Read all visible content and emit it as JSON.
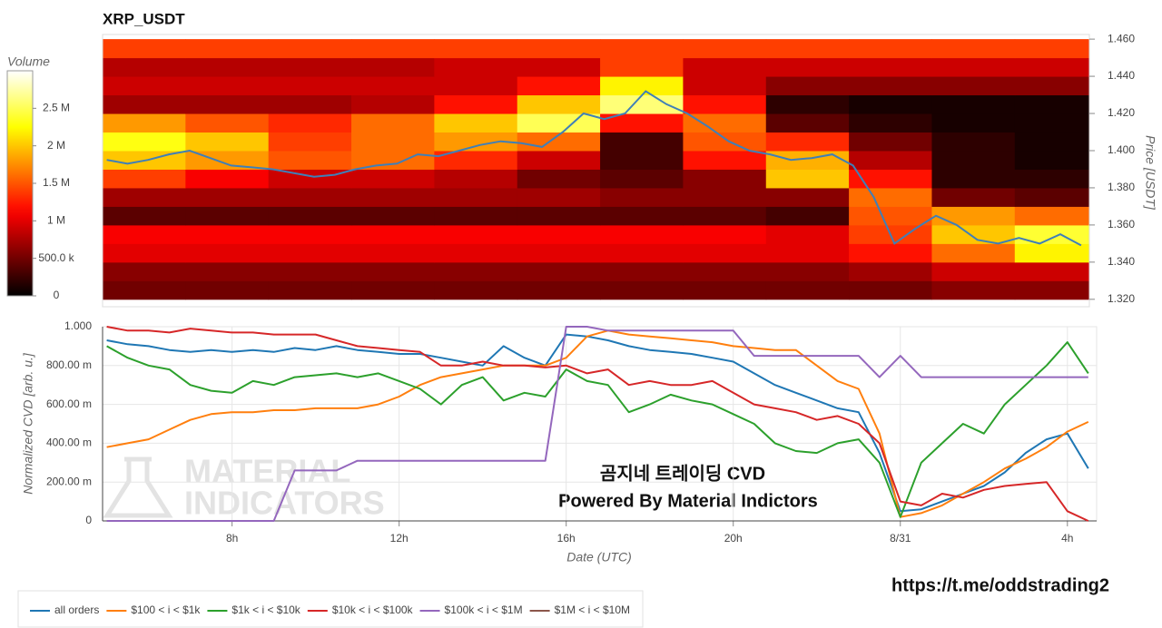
{
  "chart_data": [
    {
      "type": "heatmap",
      "title": "XRP_USDT",
      "ylabel": "Price [USDT]",
      "yaxis_side": "right",
      "xlim": [
        4.9,
        28.7
      ],
      "ylim": [
        1.316,
        1.4625
      ],
      "yticks": [
        {
          "value": 1.32,
          "label": "1.320"
        },
        {
          "value": 1.34,
          "label": "1.340"
        },
        {
          "value": 1.36,
          "label": "1.360"
        },
        {
          "value": 1.38,
          "label": "1.380"
        },
        {
          "value": 1.4,
          "label": "1.400"
        },
        {
          "value": 1.42,
          "label": "1.420"
        },
        {
          "value": 1.44,
          "label": "1.440"
        },
        {
          "value": 1.46,
          "label": "1.460"
        }
      ],
      "colorscale": "hot",
      "colorbar_title": "Volume",
      "zlim": [
        0,
        3000000
      ],
      "zticks": [
        0,
        {
          "value": 500000,
          "label": "500.0 k"
        },
        {
          "value": 1000000,
          "label": "1 M"
        },
        {
          "value": 1500000,
          "label": "1.5 M"
        },
        {
          "value": 2000000,
          "label": "2 M"
        },
        {
          "value": 2500000,
          "label": "2.5 M"
        }
      ],
      "xbins": [
        4.9,
        6.9,
        8.9,
        10.9,
        12.9,
        14.9,
        16.9,
        18.9,
        20.9,
        22.9,
        24.9,
        26.9,
        28.9
      ],
      "ybins": [
        1.32,
        1.33,
        1.34,
        1.35,
        1.36,
        1.37,
        1.38,
        1.39,
        1.4,
        1.41,
        1.42,
        1.43,
        1.44,
        1.45,
        1.46
      ],
      "z": [
        [
          500000,
          500000,
          500000,
          500000,
          500000,
          500000,
          500000,
          500000,
          500000,
          500000,
          600000,
          600000
        ],
        [
          600000,
          600000,
          600000,
          600000,
          600000,
          600000,
          600000,
          600000,
          600000,
          700000,
          900000,
          900000
        ],
        [
          1000000,
          1000000,
          1000000,
          1000000,
          1000000,
          1000000,
          1000000,
          1000000,
          1000000,
          1200000,
          1600000,
          2200000
        ],
        [
          1100000,
          1100000,
          1100000,
          1100000,
          1100000,
          1100000,
          1100000,
          1100000,
          1000000,
          1400000,
          2000000,
          2400000
        ],
        [
          400000,
          400000,
          400000,
          400000,
          400000,
          400000,
          400000,
          400000,
          300000,
          1500000,
          1800000,
          1600000
        ],
        [
          700000,
          700000,
          700000,
          700000,
          700000,
          700000,
          600000,
          600000,
          600000,
          1600000,
          500000,
          400000
        ],
        [
          1400000,
          1100000,
          900000,
          900000,
          800000,
          500000,
          400000,
          600000,
          2000000,
          1200000,
          200000,
          200000
        ],
        [
          2000000,
          1800000,
          1500000,
          1600000,
          1300000,
          900000,
          300000,
          1200000,
          1900000,
          800000,
          200000,
          100000
        ],
        [
          2300000,
          2000000,
          1400000,
          1600000,
          1800000,
          1600000,
          300000,
          1500000,
          1300000,
          500000,
          200000,
          100000
        ],
        [
          1800000,
          1500000,
          1300000,
          1600000,
          2000000,
          2500000,
          1200000,
          1600000,
          400000,
          200000,
          100000,
          100000
        ],
        [
          700000,
          700000,
          700000,
          800000,
          1200000,
          2000000,
          2600000,
          1200000,
          200000,
          100000,
          100000,
          100000
        ],
        [
          900000,
          900000,
          900000,
          900000,
          900000,
          1200000,
          2200000,
          900000,
          600000,
          600000,
          600000,
          600000
        ],
        [
          800000,
          800000,
          800000,
          800000,
          900000,
          900000,
          1400000,
          900000,
          900000,
          900000,
          900000,
          900000
        ],
        [
          1400000,
          1400000,
          1400000,
          1400000,
          1400000,
          1400000,
          1400000,
          1400000,
          1400000,
          1400000,
          1400000,
          1400000
        ]
      ],
      "x": [
        5,
        5.5,
        6,
        6.5,
        7,
        7.5,
        8,
        8.5,
        9,
        9.5,
        10,
        10.5,
        11,
        11.5,
        12,
        12.5,
        13,
        13.5,
        14,
        14.5,
        15,
        15.5,
        16,
        16.5,
        17,
        17.5,
        18,
        18.5,
        19,
        19.5,
        20,
        20.5,
        21,
        21.5,
        22,
        22.5,
        23,
        23.5,
        24,
        24.5,
        25,
        25.5,
        26,
        26.5,
        27,
        27.5,
        28,
        28.5
      ],
      "series": [
        {
          "color": "#3f7fb8",
          "values": [
            1.395,
            1.393,
            1.395,
            1.398,
            1.4,
            1.396,
            1.392,
            1.391,
            1.39,
            1.388,
            1.386,
            1.387,
            1.39,
            1.392,
            1.393,
            1.398,
            1.397,
            1.4,
            1.403,
            1.405,
            1.404,
            1.402,
            1.41,
            1.42,
            1.417,
            1.42,
            1.432,
            1.425,
            1.42,
            1.413,
            1.405,
            1.4,
            1.398,
            1.395,
            1.396,
            1.398,
            1.392,
            1.375,
            1.35,
            1.358,
            1.365,
            1.36,
            1.352,
            1.35,
            1.353,
            1.35,
            1.355,
            1.349
          ]
        }
      ]
    },
    {
      "type": "line",
      "xlabel": "Date (UTC)",
      "ylabel": "Normalized CVD [arb. u.]",
      "xlim": [
        4.9,
        28.7
      ],
      "ylim": [
        0,
        1
      ],
      "grid": true,
      "legend": "bottom-left",
      "xticks": [
        {
          "value": 8,
          "label": "8h"
        },
        {
          "value": 12,
          "label": "12h"
        },
        {
          "value": 16,
          "label": "16h"
        },
        {
          "value": 20,
          "label": "20h"
        },
        {
          "value": 24,
          "label": "8/31"
        },
        {
          "value": 28,
          "label": "4h"
        }
      ],
      "yticks": [
        0,
        {
          "value": 0.2,
          "label": "200.00 m"
        },
        {
          "value": 0.4,
          "label": "400.00 m"
        },
        {
          "value": 0.6,
          "label": "600.00 m"
        },
        {
          "value": 0.8,
          "label": "800.00 m"
        },
        {
          "value": 1,
          "label": "1.000"
        }
      ],
      "x": [
        5,
        5.5,
        6,
        6.5,
        7,
        7.5,
        8,
        8.5,
        9,
        9.5,
        10,
        10.5,
        11,
        11.5,
        12,
        12.5,
        13,
        13.5,
        14,
        14.5,
        15,
        15.5,
        16,
        16.5,
        17,
        17.5,
        18,
        18.5,
        19,
        19.5,
        20,
        20.5,
        21,
        21.5,
        22,
        22.5,
        23,
        23.5,
        24,
        24.5,
        25,
        25.5,
        26,
        26.5,
        27,
        27.5,
        28,
        28.5
      ],
      "series": [
        {
          "name": "all orders",
          "color": "#1f77b4",
          "values": [
            0.93,
            0.91,
            0.9,
            0.88,
            0.87,
            0.88,
            0.87,
            0.88,
            0.87,
            0.89,
            0.88,
            0.9,
            0.88,
            0.87,
            0.86,
            0.86,
            0.84,
            0.82,
            0.8,
            0.9,
            0.84,
            0.8,
            0.96,
            0.95,
            0.93,
            0.9,
            0.88,
            0.87,
            0.86,
            0.84,
            0.82,
            0.76,
            0.7,
            0.66,
            0.62,
            0.58,
            0.56,
            0.35,
            0.05,
            0.06,
            0.1,
            0.14,
            0.18,
            0.25,
            0.35,
            0.42,
            0.45,
            0.27
          ]
        },
        {
          "name": "$100 < i < $1k",
          "color": "#ff7f0e",
          "values": [
            0.38,
            0.4,
            0.42,
            0.47,
            0.52,
            0.55,
            0.56,
            0.56,
            0.57,
            0.57,
            0.58,
            0.58,
            0.58,
            0.6,
            0.64,
            0.7,
            0.74,
            0.76,
            0.78,
            0.8,
            0.8,
            0.8,
            0.84,
            0.95,
            0.98,
            0.96,
            0.95,
            0.94,
            0.93,
            0.92,
            0.9,
            0.89,
            0.88,
            0.88,
            0.8,
            0.72,
            0.68,
            0.45,
            0.02,
            0.04,
            0.08,
            0.14,
            0.2,
            0.27,
            0.32,
            0.38,
            0.46,
            0.51
          ]
        },
        {
          "name": "$1k < i < $10k",
          "color": "#2ca02c",
          "values": [
            0.9,
            0.84,
            0.8,
            0.78,
            0.7,
            0.67,
            0.66,
            0.72,
            0.7,
            0.74,
            0.75,
            0.76,
            0.74,
            0.76,
            0.72,
            0.68,
            0.6,
            0.7,
            0.74,
            0.62,
            0.66,
            0.64,
            0.78,
            0.72,
            0.7,
            0.56,
            0.6,
            0.65,
            0.62,
            0.6,
            0.55,
            0.5,
            0.4,
            0.36,
            0.35,
            0.4,
            0.42,
            0.3,
            0.02,
            0.3,
            0.4,
            0.5,
            0.45,
            0.6,
            0.7,
            0.8,
            0.92,
            0.76
          ]
        },
        {
          "name": "$10k < i < $100k",
          "color": "#d62728",
          "values": [
            1.0,
            0.98,
            0.98,
            0.97,
            0.99,
            0.98,
            0.97,
            0.97,
            0.96,
            0.96,
            0.96,
            0.93,
            0.9,
            0.89,
            0.88,
            0.87,
            0.8,
            0.8,
            0.82,
            0.8,
            0.8,
            0.79,
            0.8,
            0.76,
            0.78,
            0.7,
            0.72,
            0.7,
            0.7,
            0.72,
            0.66,
            0.6,
            0.58,
            0.56,
            0.52,
            0.54,
            0.5,
            0.4,
            0.1,
            0.08,
            0.14,
            0.12,
            0.16,
            0.18,
            0.19,
            0.2,
            0.05,
            0.0
          ]
        },
        {
          "name": "$100k < i < $1M",
          "color": "#9467bd",
          "values": [
            0,
            0,
            0,
            0,
            0,
            0,
            0,
            0,
            0,
            0.26,
            0.26,
            0.26,
            0.31,
            0.31,
            0.31,
            0.31,
            0.31,
            0.31,
            0.31,
            0.31,
            0.31,
            0.31,
            1.0,
            1.0,
            0.98,
            0.98,
            0.98,
            0.98,
            0.98,
            0.98,
            0.98,
            0.85,
            0.85,
            0.85,
            0.85,
            0.85,
            0.85,
            0.74,
            0.85,
            0.74,
            0.74,
            0.74,
            0.74,
            0.74,
            0.74,
            0.74,
            0.74,
            0.74
          ]
        },
        {
          "name": "$1M < i < $10M",
          "color": "#8c564b",
          "values": [
            null,
            null,
            null,
            null,
            null,
            null,
            null,
            null,
            null,
            null,
            null,
            null,
            null,
            null,
            null,
            null,
            null,
            null,
            null,
            null,
            null,
            null,
            null,
            null,
            null,
            null,
            null,
            null,
            null,
            null,
            null,
            null,
            null,
            null,
            null,
            null,
            null,
            null,
            null,
            null,
            null,
            null,
            null,
            null,
            null,
            null,
            null,
            null
          ]
        }
      ],
      "annotations": [
        "곰지네 트레이딩 CVD",
        "Powered By Material Indictors"
      ],
      "watermark": [
        "MATERIAL",
        "INDICATORS"
      ]
    }
  ],
  "link": "https://t.me/oddstrading2"
}
